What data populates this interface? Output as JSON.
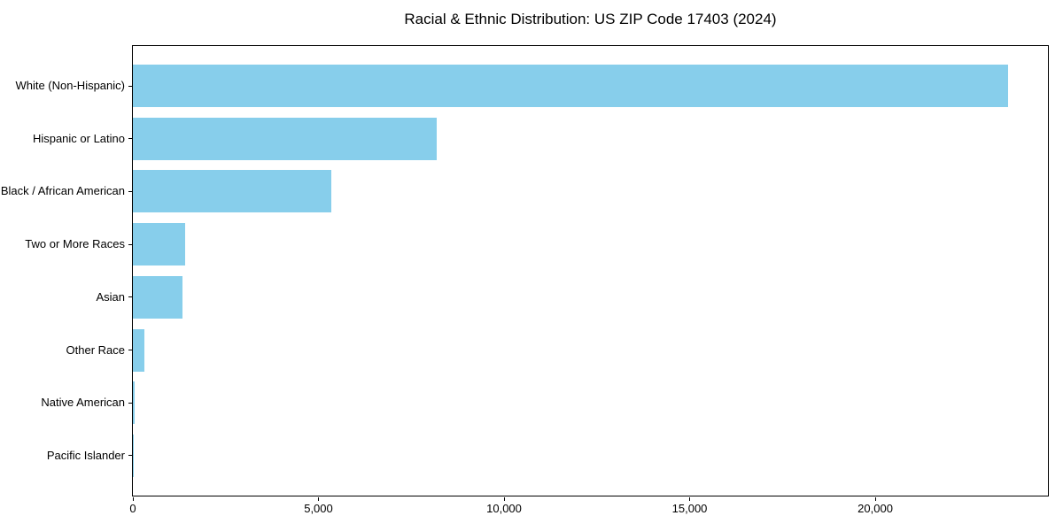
{
  "title": "Racial & Ethnic Distribution: US ZIP Code 17403 (2024)",
  "chart_data": {
    "type": "bar",
    "orientation": "horizontal",
    "title": "Racial & Ethnic Distribution: US ZIP Code 17403 (2024)",
    "xlabel": "",
    "ylabel": "",
    "categories": [
      "White (Non-Hispanic)",
      "Hispanic or Latino",
      "Black / African American",
      "Two or More Races",
      "Asian",
      "Other Race",
      "Native American",
      "Pacific Islander"
    ],
    "values": [
      23580,
      8190,
      5350,
      1410,
      1340,
      310,
      40,
      10
    ],
    "x_ticks": [
      0,
      5000,
      10000,
      15000,
      20000
    ],
    "x_tick_labels": [
      "0",
      "5,000",
      "10,000",
      "15,000",
      "20,000"
    ],
    "xlim": [
      0,
      24700
    ],
    "bar_color": "#87CEEB",
    "grid": false,
    "legend": null
  }
}
